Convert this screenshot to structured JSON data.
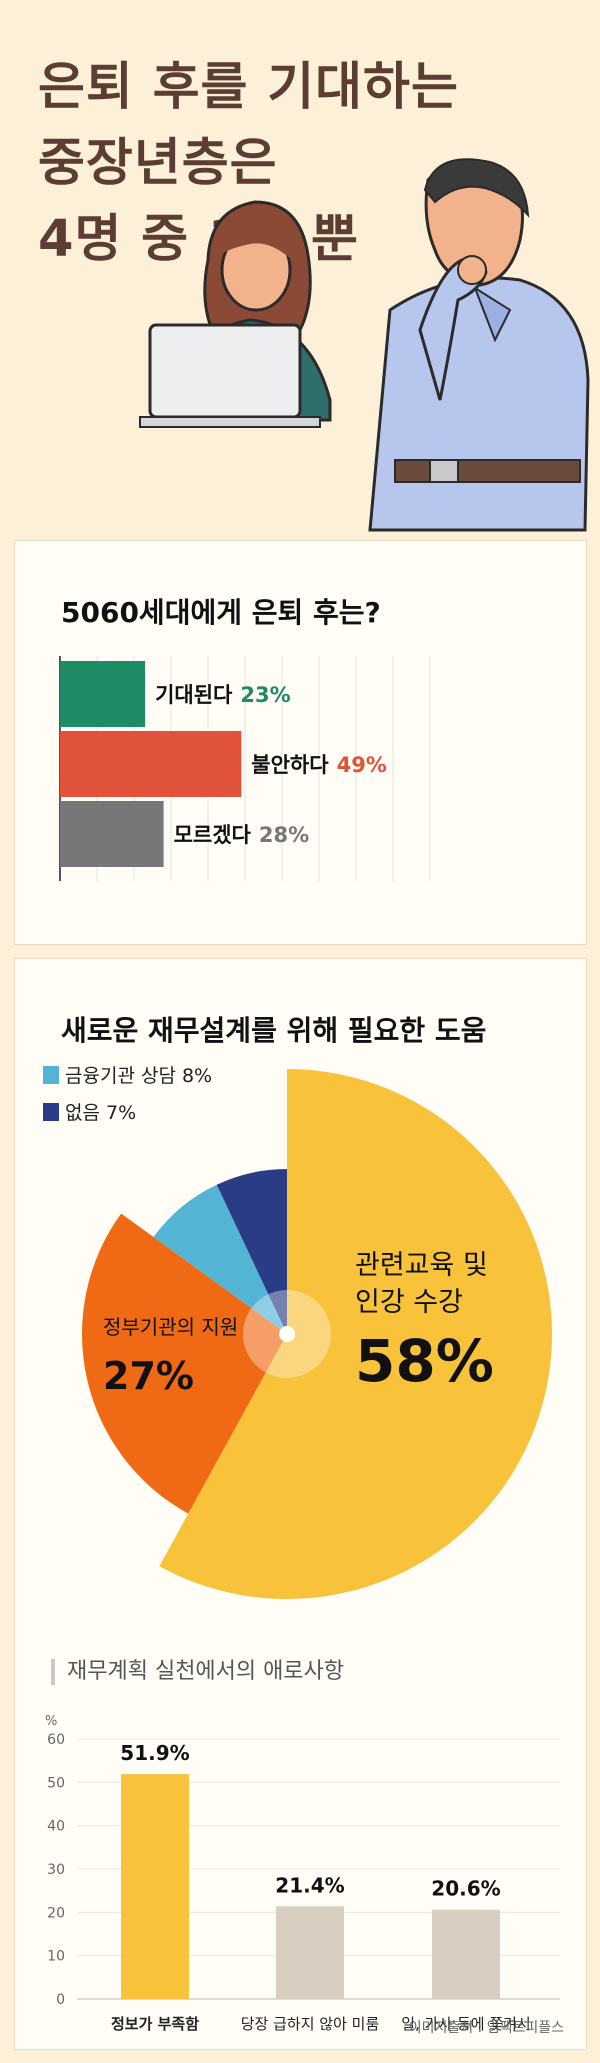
{
  "hero": {
    "title_lines": [
      "은퇴 후를 기대하는",
      "중장년층은",
      "4명 중 1명 뿐"
    ]
  },
  "colors": {
    "brown": "#5b3d33",
    "green": "#1e8a66",
    "red": "#e0523a",
    "gray": "#777777",
    "yellow": "#f8c23b",
    "orange": "#f06a16",
    "lightblue": "#53b4d3",
    "navy": "#2a3c85",
    "beige": "#d9cfc0"
  },
  "chart_data": [
    {
      "type": "bar",
      "orientation": "horizontal",
      "title": "5060세대에게 은퇴 후는?",
      "categories": [
        "기대된다",
        "불안하다",
        "모르겠다"
      ],
      "values": [
        23,
        49,
        28
      ],
      "value_labels": [
        "23%",
        "49%",
        "28%"
      ],
      "colors": [
        "#1e8a66",
        "#e0523a",
        "#777777"
      ],
      "xlim": [
        0,
        100
      ],
      "grid": true
    },
    {
      "type": "pie",
      "title": "새로운 재무설계를 위해 필요한 도움",
      "slices": [
        {
          "label": "관련교육 및 인강 수강",
          "value": 58,
          "value_label": "58%",
          "color": "#f8c23b"
        },
        {
          "label": "정부기관의 지원",
          "value": 27,
          "value_label": "27%",
          "color": "#f06a16"
        },
        {
          "label": "금융기관 상담",
          "value": 8,
          "value_label": "8%",
          "color": "#53b4d3"
        },
        {
          "label": "없음",
          "value": 7,
          "value_label": "7%",
          "color": "#2a3c85"
        }
      ],
      "legend": [
        "금융기관 상담 8%",
        "없음 7%"
      ],
      "legend_position": "top-left"
    },
    {
      "type": "bar",
      "title": "재무계획 실천에서의 애로사항",
      "ylabel": "%",
      "categories": [
        "정보가 부족함",
        "당장 급하지 않아 미룸",
        "일, 가사 등에 쫓겨서"
      ],
      "values": [
        51.9,
        21.4,
        20.6
      ],
      "value_labels": [
        "51.9%",
        "21.4%",
        "20.6%"
      ],
      "colors": [
        "#f8c23b",
        "#d9cfc0",
        "#d9cfc0"
      ],
      "ylim": [
        0,
        60
      ],
      "yticks": [
        "0",
        "10",
        "20",
        "30",
        "40",
        "50",
        "60"
      ],
      "grid": true
    }
  ],
  "credit": "이미지출처 : 임팩트피플스"
}
